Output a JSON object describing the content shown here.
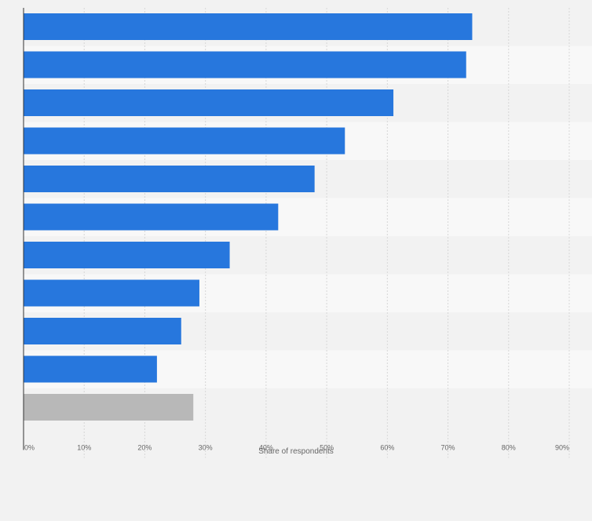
{
  "chart_data": {
    "type": "bar",
    "orientation": "horizontal",
    "categories": [
      "",
      "",
      "",
      "",
      "",
      "",
      "",
      "",
      "",
      "",
      ""
    ],
    "values": [
      74,
      73,
      61,
      53,
      48,
      42,
      34,
      29,
      26,
      22,
      28
    ],
    "highlight_last": true,
    "xlabel": "Share of respondents",
    "ylabel": "",
    "xlim": [
      0,
      90
    ],
    "xticks": [
      "0%",
      "10%",
      "20%",
      "30%",
      "40%",
      "50%",
      "60%",
      "70%",
      "80%",
      "90%"
    ],
    "grid": true,
    "colors": {
      "bar": "#2777dd",
      "bar_other": "#b8b8b8",
      "band_dark": "#f2f2f2",
      "band_light": "#f8f8f8",
      "grid": "#d7d7d7",
      "axis": "#333333",
      "tick_text": "#666666",
      "page_bg": "#f2f2f2"
    }
  }
}
